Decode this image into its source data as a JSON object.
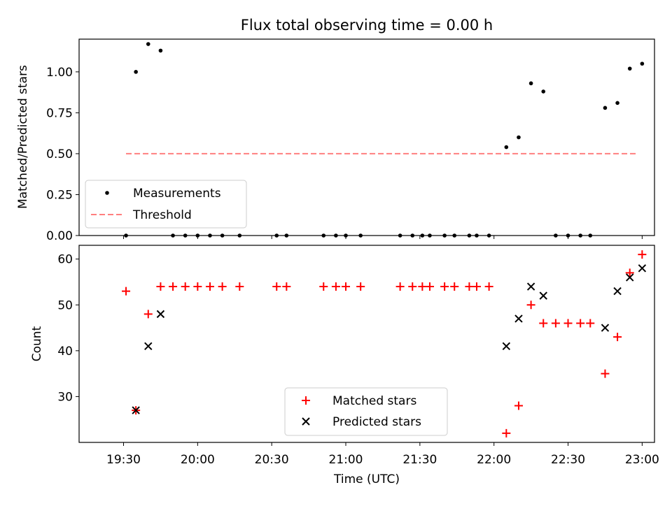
{
  "figure": {
    "title": "Flux total observing time = 0.00 h",
    "xlabel": "Time (UTC)"
  },
  "x_ticks": [
    "19:30",
    "20:00",
    "20:30",
    "21:00",
    "21:30",
    "22:00",
    "22:30",
    "23:00"
  ],
  "chart_data": [
    {
      "type": "scatter",
      "title": "Flux total observing time = 0.00 h",
      "ylabel": "Matched/Predicted stars",
      "ylim": [
        0,
        1.2
      ],
      "yticks": [
        "0.00",
        "0.25",
        "0.50",
        "0.75",
        "1.00"
      ],
      "xlim": [
        "19:12",
        "23:05"
      ],
      "legend_position": "lower-left",
      "threshold": {
        "name": "Threshold",
        "value": 0.5,
        "x_range": [
          "19:31",
          "22:58"
        ],
        "color": "#ff7f7f",
        "style": "dashed"
      },
      "series": [
        {
          "name": "Measurements",
          "color": "#000000",
          "marker": "dot",
          "points": [
            [
              "19:31",
              0.0
            ],
            [
              "19:35",
              1.0
            ],
            [
              "19:40",
              1.17
            ],
            [
              "19:45",
              1.13
            ],
            [
              "19:50",
              0.0
            ],
            [
              "19:55",
              0.0
            ],
            [
              "20:00",
              0.0
            ],
            [
              "20:05",
              0.0
            ],
            [
              "20:10",
              0.0
            ],
            [
              "20:17",
              0.0
            ],
            [
              "20:32",
              0.0
            ],
            [
              "20:36",
              0.0
            ],
            [
              "20:51",
              0.0
            ],
            [
              "20:56",
              0.0
            ],
            [
              "21:00",
              0.0
            ],
            [
              "21:06",
              0.0
            ],
            [
              "21:22",
              0.0
            ],
            [
              "21:27",
              0.0
            ],
            [
              "21:31",
              0.0
            ],
            [
              "21:34",
              0.0
            ],
            [
              "21:40",
              0.0
            ],
            [
              "21:44",
              0.0
            ],
            [
              "21:50",
              0.0
            ],
            [
              "21:53",
              0.0
            ],
            [
              "21:58",
              0.0
            ],
            [
              "22:05",
              0.54
            ],
            [
              "22:10",
              0.6
            ],
            [
              "22:15",
              0.93
            ],
            [
              "22:20",
              0.88
            ],
            [
              "22:25",
              0.0
            ],
            [
              "22:30",
              0.0
            ],
            [
              "22:35",
              0.0
            ],
            [
              "22:39",
              0.0
            ],
            [
              "22:45",
              0.78
            ],
            [
              "22:50",
              0.81
            ],
            [
              "22:55",
              1.02
            ],
            [
              "23:00",
              1.05
            ]
          ]
        }
      ]
    },
    {
      "type": "scatter",
      "xlabel": "Time (UTC)",
      "ylabel": "Count",
      "ylim": [
        20,
        63
      ],
      "yticks": [
        "30",
        "40",
        "50",
        "60"
      ],
      "xlim": [
        "19:12",
        "23:05"
      ],
      "legend_position": "bottom-center",
      "series": [
        {
          "name": "Matched stars",
          "color": "#ff0000",
          "marker": "plus",
          "points": [
            [
              "19:31",
              53
            ],
            [
              "19:35",
              27
            ],
            [
              "19:40",
              48
            ],
            [
              "19:45",
              54
            ],
            [
              "19:50",
              54
            ],
            [
              "19:55",
              54
            ],
            [
              "20:00",
              54
            ],
            [
              "20:05",
              54
            ],
            [
              "20:10",
              54
            ],
            [
              "20:17",
              54
            ],
            [
              "20:32",
              54
            ],
            [
              "20:36",
              54
            ],
            [
              "20:51",
              54
            ],
            [
              "20:56",
              54
            ],
            [
              "21:00",
              54
            ],
            [
              "21:06",
              54
            ],
            [
              "21:22",
              54
            ],
            [
              "21:27",
              54
            ],
            [
              "21:31",
              54
            ],
            [
              "21:34",
              54
            ],
            [
              "21:40",
              54
            ],
            [
              "21:44",
              54
            ],
            [
              "21:50",
              54
            ],
            [
              "21:53",
              54
            ],
            [
              "21:58",
              54
            ],
            [
              "22:05",
              22
            ],
            [
              "22:10",
              28
            ],
            [
              "22:15",
              50
            ],
            [
              "22:20",
              46
            ],
            [
              "22:25",
              46
            ],
            [
              "22:30",
              46
            ],
            [
              "22:35",
              46
            ],
            [
              "22:39",
              46
            ],
            [
              "22:45",
              35
            ],
            [
              "22:50",
              43
            ],
            [
              "22:55",
              57
            ],
            [
              "23:00",
              61
            ]
          ]
        },
        {
          "name": "Predicted stars",
          "color": "#000000",
          "marker": "x",
          "points": [
            [
              "19:35",
              27
            ],
            [
              "19:40",
              41
            ],
            [
              "19:45",
              48
            ],
            [
              "22:05",
              41
            ],
            [
              "22:10",
              47
            ],
            [
              "22:15",
              54
            ],
            [
              "22:20",
              52
            ],
            [
              "22:45",
              45
            ],
            [
              "22:50",
              53
            ],
            [
              "22:55",
              56
            ],
            [
              "23:00",
              58
            ]
          ]
        }
      ]
    }
  ]
}
